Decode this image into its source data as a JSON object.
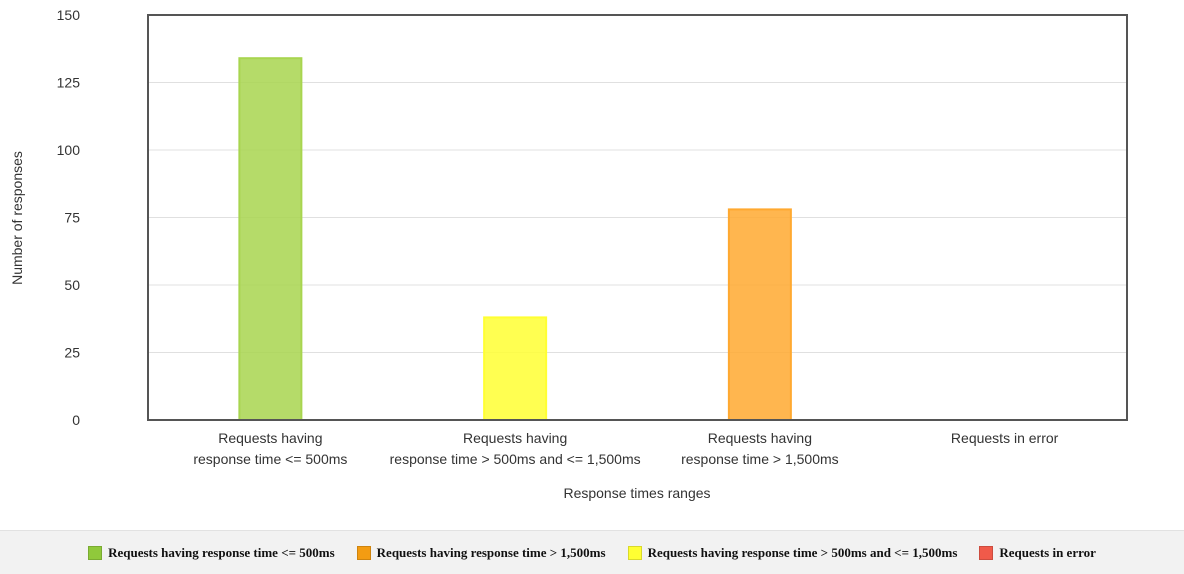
{
  "chart_data": {
    "type": "bar",
    "xlabel": "Response times ranges",
    "ylabel": "Number of responses",
    "ylim": [
      0,
      150
    ],
    "yticks": [
      0,
      25,
      50,
      75,
      100,
      125,
      150
    ],
    "grid": true,
    "legend_position": "bottom",
    "categories": [
      [
        "Requests having",
        "response time <= 500ms"
      ],
      [
        "Requests having",
        "response time > 500ms and <= 1,500ms"
      ],
      [
        "Requests having",
        "response time > 1,500ms"
      ],
      [
        "Requests in error"
      ]
    ],
    "values": [
      134,
      38,
      78,
      0
    ],
    "colors": [
      "#a8d54f",
      "#ffff33",
      "#ffa930",
      "#ff5a3c"
    ]
  },
  "legend": [
    {
      "label": "Requests having response time <= 500ms",
      "color": "#90c93b"
    },
    {
      "label": "Requests having response time > 1,500ms",
      "color": "#f39c12"
    },
    {
      "label": "Requests having response time > 500ms and <= 1,500ms",
      "color": "#ffff33"
    },
    {
      "label": "Requests in error",
      "color": "#f05a4a"
    }
  ]
}
